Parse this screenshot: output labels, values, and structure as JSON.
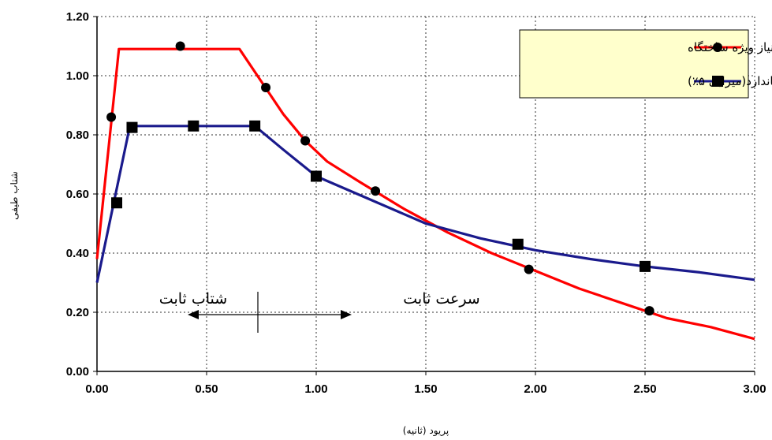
{
  "chart_data": {
    "type": "line",
    "xlabel": "پریود (ثانیه)",
    "ylabel": "شتاب طیفی",
    "xlim": [
      0,
      3
    ],
    "ylim": [
      0,
      1.2
    ],
    "x_ticks": [
      "0.00",
      "0.50",
      "1.00",
      "1.50",
      "2.00",
      "2.50",
      "3.00"
    ],
    "y_ticks": [
      "0.00",
      "0.20",
      "0.40",
      "0.60",
      "0.80",
      "1.00",
      "1.20"
    ],
    "grid": true,
    "legend_position": "top-right",
    "series": [
      {
        "name": "طیف نیاز ویژه ساختگاه",
        "color": "#ff0000",
        "marker": "circle",
        "line": [
          [
            0.0,
            0.38
          ],
          [
            0.1,
            1.09
          ],
          [
            0.65,
            1.09
          ],
          [
            0.75,
            0.98
          ],
          [
            0.85,
            0.87
          ],
          [
            0.95,
            0.78
          ],
          [
            1.05,
            0.71
          ],
          [
            1.2,
            0.64
          ],
          [
            1.4,
            0.55
          ],
          [
            1.6,
            0.47
          ],
          [
            1.8,
            0.4
          ],
          [
            2.0,
            0.34
          ],
          [
            2.2,
            0.28
          ],
          [
            2.4,
            0.23
          ],
          [
            2.6,
            0.18
          ],
          [
            2.8,
            0.15
          ],
          [
            3.0,
            0.11
          ]
        ],
        "markers": [
          [
            0.065,
            0.86
          ],
          [
            0.38,
            1.1
          ],
          [
            0.77,
            0.96
          ],
          [
            0.95,
            0.78
          ],
          [
            1.27,
            0.61
          ],
          [
            1.97,
            0.345
          ],
          [
            2.52,
            0.205
          ]
        ]
      },
      {
        "name": "طیف نیاز استاندارد(میرایی ۵٪)",
        "color": "#1a1a8c",
        "marker": "square",
        "line": [
          [
            0.0,
            0.3
          ],
          [
            0.15,
            0.83
          ],
          [
            0.72,
            0.83
          ],
          [
            0.85,
            0.75
          ],
          [
            1.0,
            0.66
          ],
          [
            1.25,
            0.58
          ],
          [
            1.5,
            0.5
          ],
          [
            1.75,
            0.45
          ],
          [
            2.0,
            0.41
          ],
          [
            2.25,
            0.38
          ],
          [
            2.5,
            0.355
          ],
          [
            2.75,
            0.335
          ],
          [
            3.0,
            0.31
          ]
        ],
        "markers": [
          [
            0.09,
            0.57
          ],
          [
            0.16,
            0.825
          ],
          [
            0.44,
            0.83
          ],
          [
            0.72,
            0.83
          ],
          [
            1.0,
            0.66
          ],
          [
            1.92,
            0.43
          ],
          [
            2.5,
            0.355
          ]
        ]
      }
    ],
    "annotations": {
      "constant_acceleration": "شتاب ثابت",
      "constant_velocity": "سرعت ثابت"
    }
  }
}
